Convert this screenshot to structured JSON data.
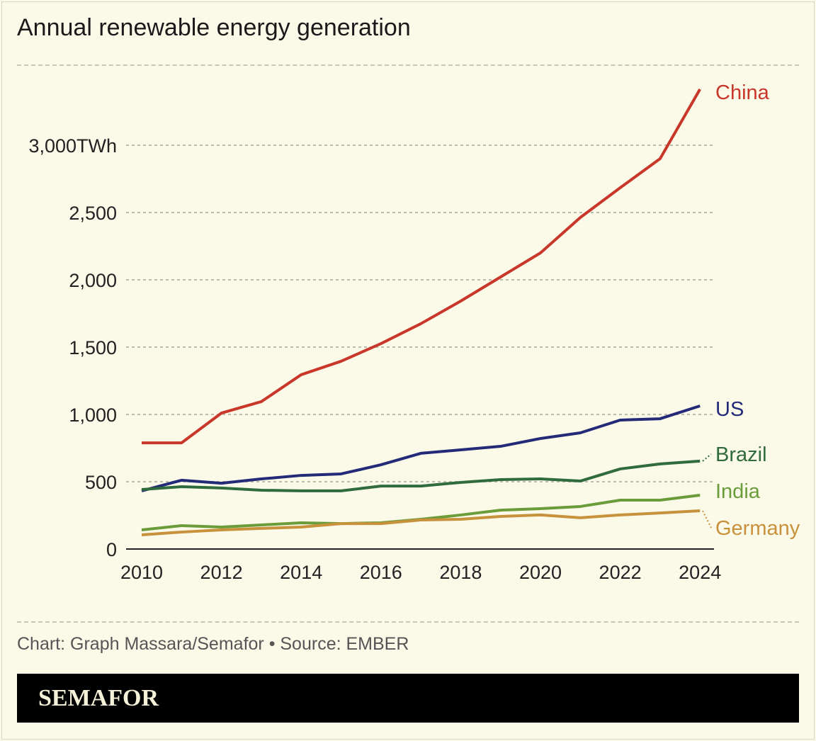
{
  "chart_data": {
    "type": "line",
    "title": "Annual renewable energy generation",
    "xlabel": "",
    "ylabel": "",
    "x": [
      2010,
      2011,
      2012,
      2013,
      2014,
      2015,
      2016,
      2017,
      2018,
      2019,
      2020,
      2021,
      2022,
      2023,
      2024
    ],
    "x_ticks": [
      "2010",
      "2012",
      "2014",
      "2016",
      "2018",
      "2020",
      "2022",
      "2024"
    ],
    "y_ticks": [
      {
        "value": 0,
        "label": "0"
      },
      {
        "value": 500,
        "label": "500"
      },
      {
        "value": 1000,
        "label": "1,000"
      },
      {
        "value": 1500,
        "label": "1,500"
      },
      {
        "value": 2000,
        "label": "2,000"
      },
      {
        "value": 2500,
        "label": "2,500"
      },
      {
        "value": 3000,
        "label": "3,000TWh"
      }
    ],
    "ylim": [
      0,
      3500
    ],
    "xlim": [
      2010,
      2024
    ],
    "grid": true,
    "legend": "direct labels at line ends",
    "series": [
      {
        "name": "China",
        "color": "#c8372a",
        "values": [
          789,
          789,
          1010,
          1095,
          1295,
          1395,
          1526,
          1674,
          1842,
          2021,
          2200,
          2463,
          2684,
          2900,
          3416
        ]
      },
      {
        "name": "US",
        "color": "#232a78",
        "values": [
          432,
          511,
          489,
          521,
          547,
          558,
          626,
          711,
          737,
          763,
          821,
          863,
          958,
          968,
          1063
        ]
      },
      {
        "name": "Brazil",
        "color": "#2f6b3c",
        "values": [
          442,
          463,
          453,
          437,
          432,
          432,
          468,
          468,
          495,
          516,
          521,
          505,
          595,
          632,
          653
        ]
      },
      {
        "name": "India",
        "color": "#6a9c3a",
        "values": [
          142,
          174,
          163,
          179,
          195,
          189,
          195,
          221,
          253,
          289,
          300,
          316,
          363,
          363,
          400
        ]
      },
      {
        "name": "Germany",
        "color": "#c8913c",
        "values": [
          105,
          126,
          142,
          153,
          163,
          189,
          189,
          216,
          221,
          242,
          253,
          232,
          253,
          268,
          284
        ]
      }
    ]
  },
  "footer": {
    "credit": "Chart: Graph Massara/Semafor • Source: EMBER"
  },
  "brand": {
    "logo_text": "SEMAFOR"
  }
}
